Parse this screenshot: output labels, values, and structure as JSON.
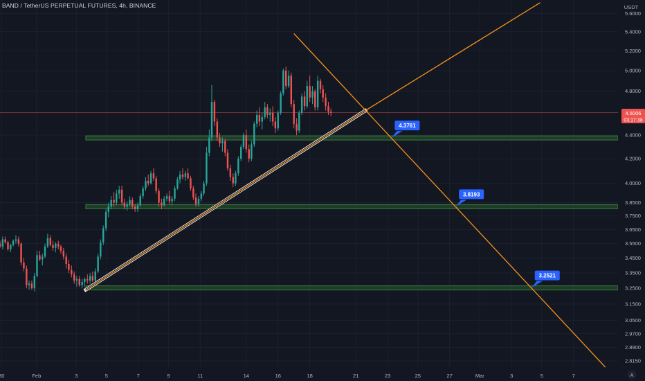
{
  "header": {
    "title": "BAND / TetherUS PERPETUAL FUTURES, 4h, BINANCE"
  },
  "axis": {
    "currency": "USDT",
    "corner_label": "A"
  },
  "price_tag": {
    "value": "4.6006",
    "countdown": "03:17:38"
  },
  "colors": {
    "background": "#131722",
    "up": "#26a69a",
    "down": "#ef5350",
    "trend": "#f7931a",
    "support_zone": "#2e5b30",
    "label_bg": "#2962ff",
    "price_line": "#ef5350"
  },
  "chart_data": {
    "type": "candlestick",
    "title": "BAND / TetherUS PERPETUAL FUTURES, 4h, BINANCE",
    "y_axis": {
      "scale": "log",
      "range": [
        2.78,
        5.75
      ],
      "ticks": [
        "5.6000",
        "5.4000",
        "5.2000",
        "5.0000",
        "4.8000",
        "4.4000",
        "4.2000",
        "4.0000",
        "3.8500",
        "3.7500",
        "3.6500",
        "3.5500",
        "3.4500",
        "3.3500",
        "3.2500",
        "3.1500",
        "3.0500",
        "2.9700",
        "2.8900",
        "2.8150"
      ]
    },
    "x_axis": {
      "ticks": [
        "30",
        "Feb",
        "3",
        "5",
        "7",
        "9",
        "11",
        "14",
        "16",
        "18",
        "21",
        "23",
        "25",
        "27",
        "Mar",
        "3",
        "5",
        "7"
      ],
      "range_days": [
        -2.0,
        36.9
      ]
    },
    "current_price": 4.6006,
    "support_levels": [
      {
        "value": 4.3761,
        "label": "4.3761"
      },
      {
        "value": 3.8193,
        "label": "3.8193"
      },
      {
        "value": 3.2521,
        "label": "3.2521"
      }
    ],
    "trendlines": [
      {
        "name": "rising trendline",
        "from": {
          "day": 3.4,
          "price": 3.24
        },
        "to": {
          "day": 21.0,
          "price": 4.62
        }
      },
      {
        "name": "rising projection",
        "from": {
          "day": 21.0,
          "price": 4.62
        },
        "to": {
          "day": 32.0,
          "price": 5.72
        }
      },
      {
        "name": "falling trendline",
        "from": {
          "day": 16.5,
          "price": 5.38
        },
        "to": {
          "day": 36.1,
          "price": 2.78
        }
      }
    ],
    "candles": [
      [
        -2.0,
        3.55,
        3.57,
        3.52,
        3.53
      ],
      [
        -1.83,
        3.53,
        3.6,
        3.51,
        3.58
      ],
      [
        -1.67,
        3.58,
        3.6,
        3.55,
        3.56
      ],
      [
        -1.5,
        3.56,
        3.57,
        3.5,
        3.51
      ],
      [
        -1.33,
        3.51,
        3.55,
        3.49,
        3.54
      ],
      [
        -1.17,
        3.54,
        3.58,
        3.53,
        3.57
      ],
      [
        -1.0,
        3.57,
        3.61,
        3.55,
        3.58
      ],
      [
        -0.83,
        3.58,
        3.6,
        3.53,
        3.55
      ],
      [
        -0.67,
        3.55,
        3.56,
        3.4,
        3.42
      ],
      [
        -0.5,
        3.42,
        3.45,
        3.36,
        3.38
      ],
      [
        -0.33,
        3.38,
        3.4,
        3.25,
        3.27
      ],
      [
        -0.17,
        3.27,
        3.3,
        3.24,
        3.28
      ],
      [
        0.0,
        3.28,
        3.3,
        3.24,
        3.25
      ],
      [
        0.17,
        3.25,
        3.35,
        3.23,
        3.33
      ],
      [
        0.33,
        3.33,
        3.5,
        3.32,
        3.47
      ],
      [
        0.5,
        3.47,
        3.5,
        3.43,
        3.44
      ],
      [
        0.67,
        3.44,
        3.48,
        3.4,
        3.46
      ],
      [
        0.83,
        3.46,
        3.55,
        3.45,
        3.53
      ],
      [
        1.0,
        3.53,
        3.62,
        3.52,
        3.59
      ],
      [
        1.17,
        3.59,
        3.61,
        3.53,
        3.54
      ],
      [
        1.33,
        3.54,
        3.57,
        3.5,
        3.52
      ],
      [
        1.5,
        3.52,
        3.56,
        3.49,
        3.55
      ],
      [
        1.67,
        3.55,
        3.57,
        3.51,
        3.53
      ],
      [
        1.83,
        3.53,
        3.54,
        3.48,
        3.5
      ],
      [
        2.0,
        3.5,
        3.52,
        3.44,
        3.46
      ],
      [
        2.17,
        3.46,
        3.48,
        3.38,
        3.41
      ],
      [
        2.33,
        3.41,
        3.44,
        3.35,
        3.37
      ],
      [
        2.5,
        3.37,
        3.4,
        3.32,
        3.34
      ],
      [
        2.67,
        3.34,
        3.36,
        3.28,
        3.3
      ],
      [
        2.83,
        3.3,
        3.33,
        3.26,
        3.31
      ],
      [
        3.0,
        3.31,
        3.33,
        3.26,
        3.27
      ],
      [
        3.17,
        3.27,
        3.31,
        3.25,
        3.29
      ],
      [
        3.33,
        3.29,
        3.32,
        3.26,
        3.31
      ],
      [
        3.5,
        3.31,
        3.34,
        3.28,
        3.3
      ],
      [
        3.67,
        3.3,
        3.35,
        3.28,
        3.33
      ],
      [
        3.83,
        3.33,
        3.36,
        3.29,
        3.3
      ],
      [
        4.0,
        3.3,
        3.38,
        3.29,
        3.36
      ],
      [
        4.17,
        3.36,
        3.48,
        3.35,
        3.46
      ],
      [
        4.33,
        3.46,
        3.58,
        3.44,
        3.56
      ],
      [
        4.5,
        3.56,
        3.68,
        3.54,
        3.66
      ],
      [
        4.67,
        3.66,
        3.8,
        3.64,
        3.78
      ],
      [
        4.83,
        3.78,
        3.85,
        3.74,
        3.82
      ],
      [
        5.0,
        3.82,
        3.9,
        3.8,
        3.87
      ],
      [
        5.17,
        3.87,
        3.93,
        3.82,
        3.85
      ],
      [
        5.33,
        3.85,
        3.95,
        3.83,
        3.92
      ],
      [
        5.5,
        3.92,
        3.98,
        3.88,
        3.95
      ],
      [
        5.67,
        3.95,
        3.98,
        3.83,
        3.85
      ],
      [
        5.83,
        3.85,
        3.88,
        3.8,
        3.82
      ],
      [
        6.0,
        3.82,
        3.86,
        3.79,
        3.84
      ],
      [
        6.17,
        3.84,
        3.9,
        3.82,
        3.87
      ],
      [
        6.33,
        3.87,
        3.89,
        3.8,
        3.82
      ],
      [
        6.5,
        3.82,
        3.84,
        3.78,
        3.8
      ],
      [
        6.67,
        3.8,
        3.85,
        3.78,
        3.83
      ],
      [
        6.83,
        3.83,
        3.92,
        3.82,
        3.9
      ],
      [
        7.0,
        3.9,
        3.98,
        3.88,
        3.96
      ],
      [
        7.17,
        3.96,
        4.05,
        3.94,
        4.02
      ],
      [
        7.33,
        4.02,
        4.07,
        3.98,
        4.0
      ],
      [
        7.5,
        4.0,
        4.1,
        3.99,
        4.08
      ],
      [
        7.67,
        4.08,
        4.12,
        4.02,
        4.04
      ],
      [
        7.83,
        4.04,
        4.06,
        3.92,
        3.94
      ],
      [
        8.0,
        3.94,
        3.96,
        3.82,
        3.85
      ],
      [
        8.17,
        3.85,
        3.88,
        3.8,
        3.83
      ],
      [
        8.33,
        3.83,
        3.9,
        3.82,
        3.88
      ],
      [
        8.5,
        3.88,
        3.92,
        3.86,
        3.9
      ],
      [
        8.67,
        3.9,
        3.94,
        3.84,
        3.86
      ],
      [
        8.83,
        3.86,
        3.9,
        3.83,
        3.88
      ],
      [
        9.0,
        3.88,
        3.98,
        3.86,
        3.96
      ],
      [
        9.17,
        3.96,
        4.05,
        3.95,
        4.03
      ],
      [
        9.33,
        4.03,
        4.1,
        4.0,
        4.07
      ],
      [
        9.5,
        4.07,
        4.12,
        4.03,
        4.05
      ],
      [
        9.67,
        4.05,
        4.1,
        4.02,
        4.08
      ],
      [
        9.83,
        4.08,
        4.12,
        4.03,
        4.04
      ],
      [
        10.0,
        4.04,
        4.06,
        3.94,
        3.96
      ],
      [
        10.17,
        3.96,
        3.98,
        3.87,
        3.89
      ],
      [
        10.33,
        3.89,
        3.92,
        3.82,
        3.84
      ],
      [
        10.5,
        3.84,
        3.9,
        3.82,
        3.88
      ],
      [
        10.67,
        3.88,
        3.94,
        3.86,
        3.92
      ],
      [
        10.83,
        3.92,
        4.02,
        3.9,
        4.0
      ],
      [
        11.0,
        4.0,
        4.3,
        3.98,
        4.25
      ],
      [
        11.17,
        4.25,
        4.45,
        4.22,
        4.38
      ],
      [
        11.33,
        4.38,
        4.86,
        4.35,
        4.7
      ],
      [
        11.5,
        4.7,
        4.72,
        4.48,
        4.52
      ],
      [
        11.67,
        4.52,
        4.55,
        4.35,
        4.38
      ],
      [
        11.83,
        4.38,
        4.42,
        4.3,
        4.33
      ],
      [
        12.0,
        4.33,
        4.38,
        4.26,
        4.35
      ],
      [
        12.17,
        4.35,
        4.37,
        4.22,
        4.25
      ],
      [
        12.33,
        4.25,
        4.28,
        4.1,
        4.12
      ],
      [
        12.5,
        4.12,
        4.15,
        4.02,
        4.05
      ],
      [
        12.67,
        4.05,
        4.08,
        3.97,
        4.0
      ],
      [
        12.83,
        4.0,
        4.1,
        3.98,
        4.08
      ],
      [
        13.0,
        4.08,
        4.22,
        4.06,
        4.2
      ],
      [
        13.17,
        4.2,
        4.32,
        4.18,
        4.3
      ],
      [
        13.33,
        4.3,
        4.42,
        4.28,
        4.4
      ],
      [
        13.5,
        4.4,
        4.45,
        4.25,
        4.28
      ],
      [
        13.67,
        4.28,
        4.32,
        4.17,
        4.2
      ],
      [
        13.83,
        4.2,
        4.35,
        4.18,
        4.32
      ],
      [
        14.0,
        4.32,
        4.52,
        4.3,
        4.5
      ],
      [
        14.17,
        4.5,
        4.62,
        4.47,
        4.58
      ],
      [
        14.33,
        4.58,
        4.65,
        4.48,
        4.52
      ],
      [
        14.5,
        4.52,
        4.6,
        4.45,
        4.56
      ],
      [
        14.67,
        4.56,
        4.7,
        4.54,
        4.65
      ],
      [
        14.83,
        4.65,
        4.68,
        4.55,
        4.58
      ],
      [
        15.0,
        4.58,
        4.64,
        4.52,
        4.6
      ],
      [
        15.17,
        4.6,
        4.66,
        4.48,
        4.52
      ],
      [
        15.33,
        4.52,
        4.56,
        4.42,
        4.46
      ],
      [
        15.5,
        4.46,
        4.62,
        4.44,
        4.6
      ],
      [
        15.67,
        4.6,
        4.8,
        4.58,
        4.78
      ],
      [
        15.83,
        4.78,
        5.02,
        4.76,
        5.0
      ],
      [
        16.0,
        5.0,
        5.04,
        4.82,
        4.85
      ],
      [
        16.17,
        4.85,
        5.0,
        4.83,
        4.95
      ],
      [
        16.33,
        4.95,
        4.98,
        4.65,
        4.68
      ],
      [
        16.5,
        4.68,
        4.72,
        4.46,
        4.5
      ],
      [
        16.67,
        4.5,
        4.55,
        4.4,
        4.44
      ],
      [
        16.83,
        4.44,
        4.62,
        4.42,
        4.6
      ],
      [
        17.0,
        4.6,
        4.78,
        4.58,
        4.75
      ],
      [
        17.17,
        4.75,
        4.8,
        4.62,
        4.66
      ],
      [
        17.33,
        4.66,
        4.9,
        4.64,
        4.85
      ],
      [
        17.5,
        4.85,
        4.95,
        4.7,
        4.74
      ],
      [
        17.67,
        4.74,
        4.85,
        4.68,
        4.8
      ],
      [
        17.83,
        4.8,
        4.82,
        4.62,
        4.65
      ],
      [
        18.0,
        4.65,
        4.95,
        4.62,
        4.9
      ],
      [
        18.17,
        4.9,
        4.92,
        4.78,
        4.82
      ],
      [
        18.33,
        4.82,
        4.86,
        4.7,
        4.74
      ],
      [
        18.5,
        4.74,
        4.78,
        4.62,
        4.66
      ],
      [
        18.67,
        4.66,
        4.7,
        4.58,
        4.61
      ],
      [
        18.83,
        4.61,
        4.64,
        4.57,
        4.6
      ]
    ]
  }
}
